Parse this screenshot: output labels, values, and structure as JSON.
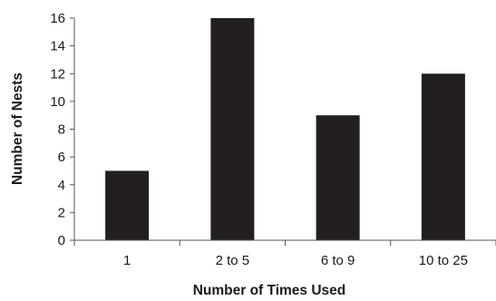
{
  "chart_data": {
    "type": "bar",
    "title": "",
    "xlabel": "Number of Times Used",
    "ylabel": "Number of Nests",
    "categories": [
      "1",
      "2 to 5",
      "6 to 9",
      "10 to 25"
    ],
    "values": [
      5,
      16,
      9,
      12
    ],
    "ylim": [
      0,
      16
    ],
    "yticks": [
      "0",
      "2",
      "4",
      "6",
      "8",
      "10",
      "12",
      "14",
      "16"
    ],
    "grid": false,
    "legend": "none",
    "bar_color": "#231f20"
  }
}
